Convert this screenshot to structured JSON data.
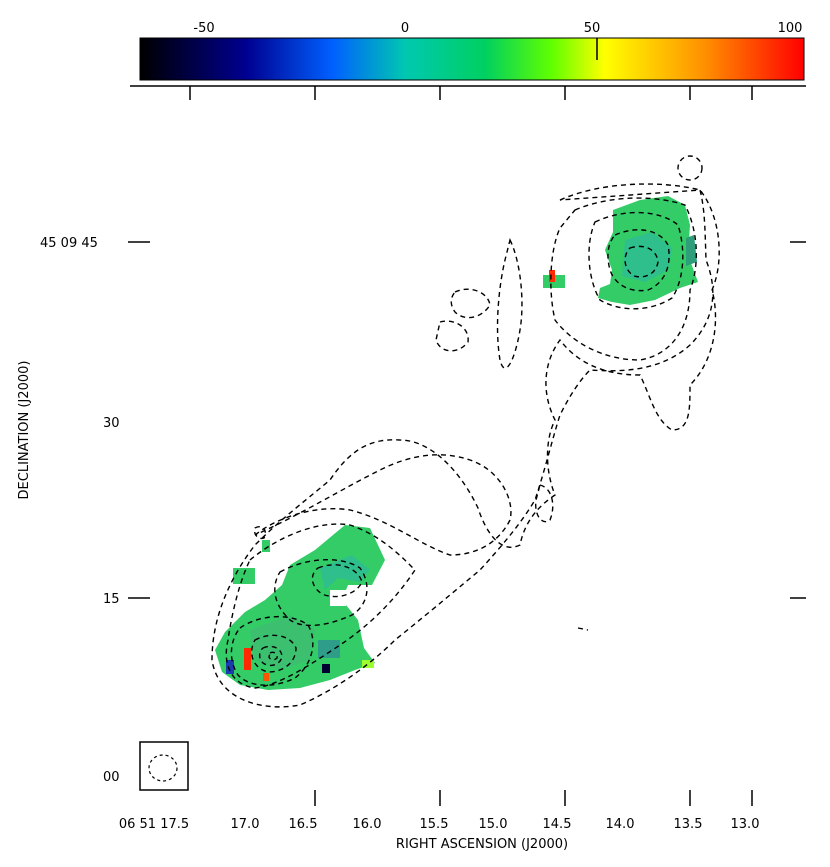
{
  "figure": {
    "axes": {
      "xlabel": "RIGHT ASCENSION (J2000)",
      "ylabel": "DECLINATION (J2000)",
      "x_ticks": [
        "06 51 17.5",
        "17.0",
        "16.5",
        "16.0",
        "15.5",
        "15.0",
        "14.5",
        "14.0",
        "13.5",
        "13.0"
      ],
      "y_ticks": [
        "45 09 45",
        "30",
        "15",
        "00"
      ]
    },
    "colorbar": {
      "tick_labels": [
        "-50",
        "0",
        "50",
        "100"
      ],
      "range": [
        -68,
        108
      ],
      "colors": [
        "#000000",
        "#0000a0",
        "#0060ff",
        "#00c8b0",
        "#00d060",
        "#60ff00",
        "#ffff00",
        "#ff9000",
        "#ff0000"
      ]
    },
    "beam": "dashed-ellipse",
    "colors": {
      "map_green": "#33cc66",
      "map_red": "#ff2a00",
      "map_dark": "#000033",
      "contour": "#000000"
    }
  }
}
